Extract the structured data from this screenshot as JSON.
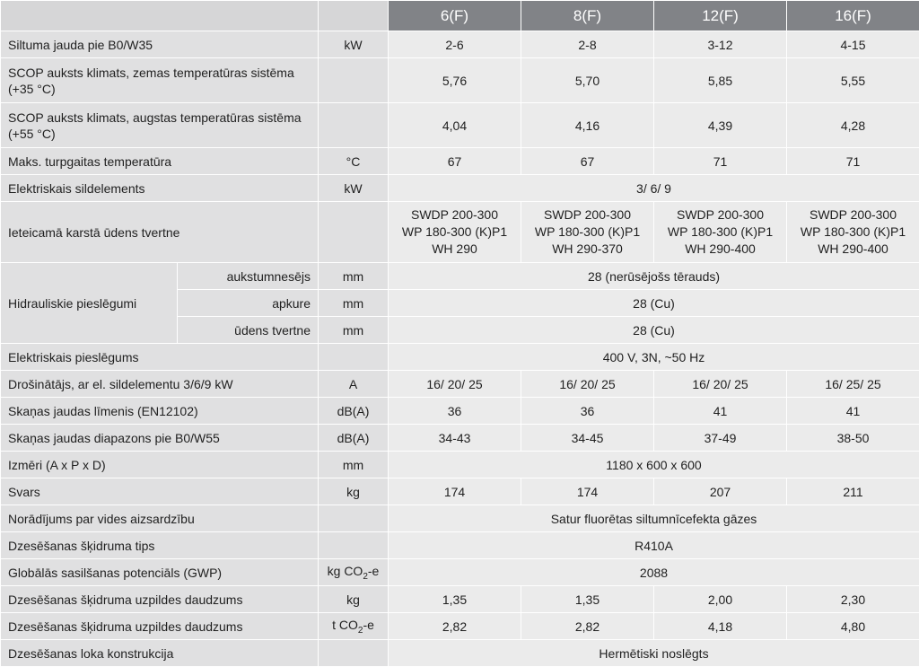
{
  "header": {
    "blank": "",
    "models": [
      "6(F)",
      "8(F)",
      "12(F)",
      "16(F)"
    ]
  },
  "rows": [
    {
      "label": "Siltuma jauda pie B0/W35",
      "unit": "kW",
      "values": [
        "2-6",
        "2-8",
        "3-12",
        "4-15"
      ]
    },
    {
      "label": "SCOP auksts klimats, zemas temperatūras sistēma (+35 °C)",
      "unit": "",
      "values": [
        "5,76",
        "5,70",
        "5,85",
        "5,55"
      ]
    },
    {
      "label": "SCOP auksts klimats, augstas temperatūras sistēma (+55 °C)",
      "unit": "",
      "values": [
        "4,04",
        "4,16",
        "4,39",
        "4,28"
      ]
    },
    {
      "label": "Maks. turpgaitas temperatūra",
      "unit": "°C",
      "values": [
        "67",
        "67",
        "71",
        "71"
      ]
    },
    {
      "label": "Elektriskais sildelements",
      "unit": "kW",
      "value": "3/ 6/ 9"
    },
    {
      "label": "Ieteicamā karstā ūdens tvertne",
      "unit": "",
      "values": [
        [
          "SWDP 200-300",
          "WP 180-300 (K)P1",
          "WH 290"
        ],
        [
          "SWDP 200-300",
          "WP 180-300 (K)P1",
          "WH 290-370"
        ],
        [
          "SWDP 200-300",
          "WP 180-300 (K)P1",
          "WH 290-400"
        ],
        [
          "SWDP 200-300",
          "WP 180-300 (K)P1",
          "WH 290-400"
        ]
      ]
    },
    {
      "label": "Hidrauliskie pieslēgumi",
      "sub": [
        {
          "label": "aukstumnesējs",
          "unit": "mm",
          "value": "28 (nerūsējošs tērauds)"
        },
        {
          "label": "apkure",
          "unit": "mm",
          "value": "28 (Cu)"
        },
        {
          "label": "ūdens tvertne",
          "unit": "mm",
          "value": "28 (Cu)"
        }
      ]
    },
    {
      "label": "Elektriskais pieslēgums",
      "unit": "",
      "value": "400 V, 3N, ~50 Hz"
    },
    {
      "label": "Drošinātājs, ar el. sildelementu 3/6/9 kW",
      "unit": "A",
      "values": [
        "16/ 20/ 25",
        "16/ 20/ 25",
        "16/ 20/ 25",
        "16/ 25/ 25"
      ]
    },
    {
      "label": "Skaņas jaudas līmenis (EN12102)",
      "unit": "dB(A)",
      "values": [
        "36",
        "36",
        "41",
        "41"
      ]
    },
    {
      "label": "Skaņas jaudas diapazons pie B0/W55",
      "unit": "dB(A)",
      "values": [
        "34-43",
        "34-45",
        "37-49",
        "38-50"
      ]
    },
    {
      "label": "Izmēri (A x P x D)",
      "unit": "mm",
      "value": "1180 x 600 x 600"
    },
    {
      "label": "Svars",
      "unit": "kg",
      "values": [
        "174",
        "174",
        "207",
        "211"
      ]
    },
    {
      "label": "Norādījums par vides aizsardzību",
      "unit": "",
      "value": "Satur fluorētas siltumnīcefekta gāzes"
    },
    {
      "label": "Dzesēšanas šķidruma tips",
      "unit": "",
      "value": "R410A"
    },
    {
      "label": "Globālās sasilšanas potenciāls (GWP)",
      "unit_main": "kg CO",
      "unit_sub": "2",
      "unit_tail": "-e",
      "value": "2088"
    },
    {
      "label": "Dzesēšanas šķidruma uzpildes daudzums",
      "unit": "kg",
      "values": [
        "1,35",
        "1,35",
        "2,00",
        "2,30"
      ]
    },
    {
      "label": "Dzesēšanas šķidruma uzpildes daudzums",
      "unit_main": "t CO",
      "unit_sub": "2",
      "unit_tail": "-e",
      "values": [
        "2,82",
        "2,82",
        "4,18",
        "4,80"
      ]
    },
    {
      "label": "Dzesēšanas loka konstrukcija",
      "unit": "",
      "value": "Hermētiski noslēgts"
    }
  ],
  "colors": {
    "header": "#818387",
    "label_bg": "#e0e0e1",
    "value_bg": "#ebebeb",
    "header_blank": "#d6d6d7",
    "grid": "#ffffff"
  }
}
